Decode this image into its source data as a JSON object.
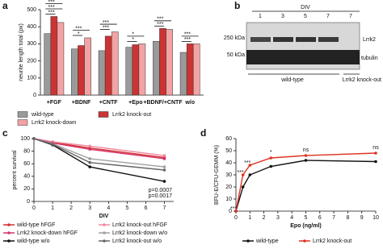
{
  "panel_labels": [
    "a",
    "b",
    "c",
    "d"
  ],
  "chart_data": [
    {
      "type": "bar",
      "y_label": "neurite length total (px)",
      "categories": [
        "+FGF",
        "+BDNF",
        "+CNTF",
        "+Epo",
        "+BDNF/+CNTF",
        "w/o"
      ],
      "series": [
        {
          "name": "wild-type",
          "color": "#9a9a9a",
          "values": [
            360,
            270,
            260,
            280,
            315,
            250
          ]
        },
        {
          "name": "Lrrk2 knock-out",
          "color": "#cc3333",
          "values": [
            460,
            290,
            345,
            295,
            390,
            300
          ]
        },
        {
          "name": "Lrrk2 knock-down",
          "color": "#f2a3a3",
          "values": [
            425,
            335,
            370,
            300,
            385,
            300
          ]
        }
      ],
      "ylim": [
        0,
        500
      ],
      "yticks": [
        0,
        100,
        200,
        300,
        400,
        500
      ],
      "significance": [
        [
          "***",
          "***",
          "***"
        ],
        [
          "*",
          "***"
        ],
        [
          "***",
          "***"
        ],
        [
          "*",
          "*"
        ],
        [
          "***",
          "***"
        ],
        [
          "***",
          "***"
        ]
      ]
    },
    {
      "type": "line",
      "y_label": "percent survival",
      "x_label": "DIV",
      "x": [
        0,
        1,
        3,
        7
      ],
      "xlim": [
        0,
        7.5
      ],
      "xticks": [
        0,
        1,
        2,
        3,
        4,
        5,
        6,
        7
      ],
      "ylim": [
        0,
        100
      ],
      "yticks": [
        0,
        20,
        40,
        60,
        80,
        100
      ],
      "series": [
        {
          "name": "wild-type hFGF",
          "color": "#d0312d",
          "values": [
            100,
            94,
            85,
            70
          ]
        },
        {
          "name": "Lrrk2 knock-out hFGF",
          "color": "#f08aa0",
          "values": [
            100,
            95,
            88,
            73
          ]
        },
        {
          "name": "Lrrk2 knock-down hFGF",
          "color": "#d6336c",
          "values": [
            100,
            93,
            83,
            68
          ]
        },
        {
          "name": "Lrrk2 knock-down w/o",
          "color": "#a0a0a0",
          "values": [
            100,
            92,
            68,
            55
          ]
        },
        {
          "name": "wild-type w/o",
          "color": "#111111",
          "values": [
            100,
            90,
            55,
            32
          ]
        },
        {
          "name": "Lrrk2 knock-out w/o",
          "color": "#666666",
          "values": [
            100,
            91,
            62,
            50
          ]
        }
      ],
      "annotations": [
        "p=0.0007",
        "p=0.0017"
      ]
    },
    {
      "type": "line",
      "y_label": "BFU-E/CFU-GEMM (%)",
      "x_label": "Epo (ng/ml)",
      "x": [
        0,
        0.5,
        1,
        2.5,
        5,
        10
      ],
      "xlim": [
        0,
        10
      ],
      "xticks": [
        0,
        1,
        2,
        3,
        4,
        5,
        6,
        7,
        8,
        9,
        10
      ],
      "ylim": [
        0,
        60
      ],
      "yticks": [
        0,
        10,
        20,
        30,
        40,
        50,
        60
      ],
      "series": [
        {
          "name": "wild-type",
          "color": "#111111",
          "values": [
            0,
            20,
            30,
            37,
            42,
            41
          ]
        },
        {
          "name": "Lrrk2 knock-out",
          "color": "#dd3322",
          "values": [
            0,
            30,
            38,
            44,
            46,
            48
          ]
        }
      ],
      "point_labels": [
        "***",
        "***",
        "***",
        "*",
        "ns",
        "ns"
      ]
    }
  ],
  "blot": {
    "title": "DIV",
    "lanes": [
      "1",
      "3",
      "5",
      "7",
      "7"
    ],
    "markers": [
      "250 kDa",
      "50 kDa"
    ],
    "bands": [
      "Lrrk2",
      "tubulin"
    ],
    "groups": [
      "wild-type",
      "Lrrk2 knock-out"
    ]
  }
}
